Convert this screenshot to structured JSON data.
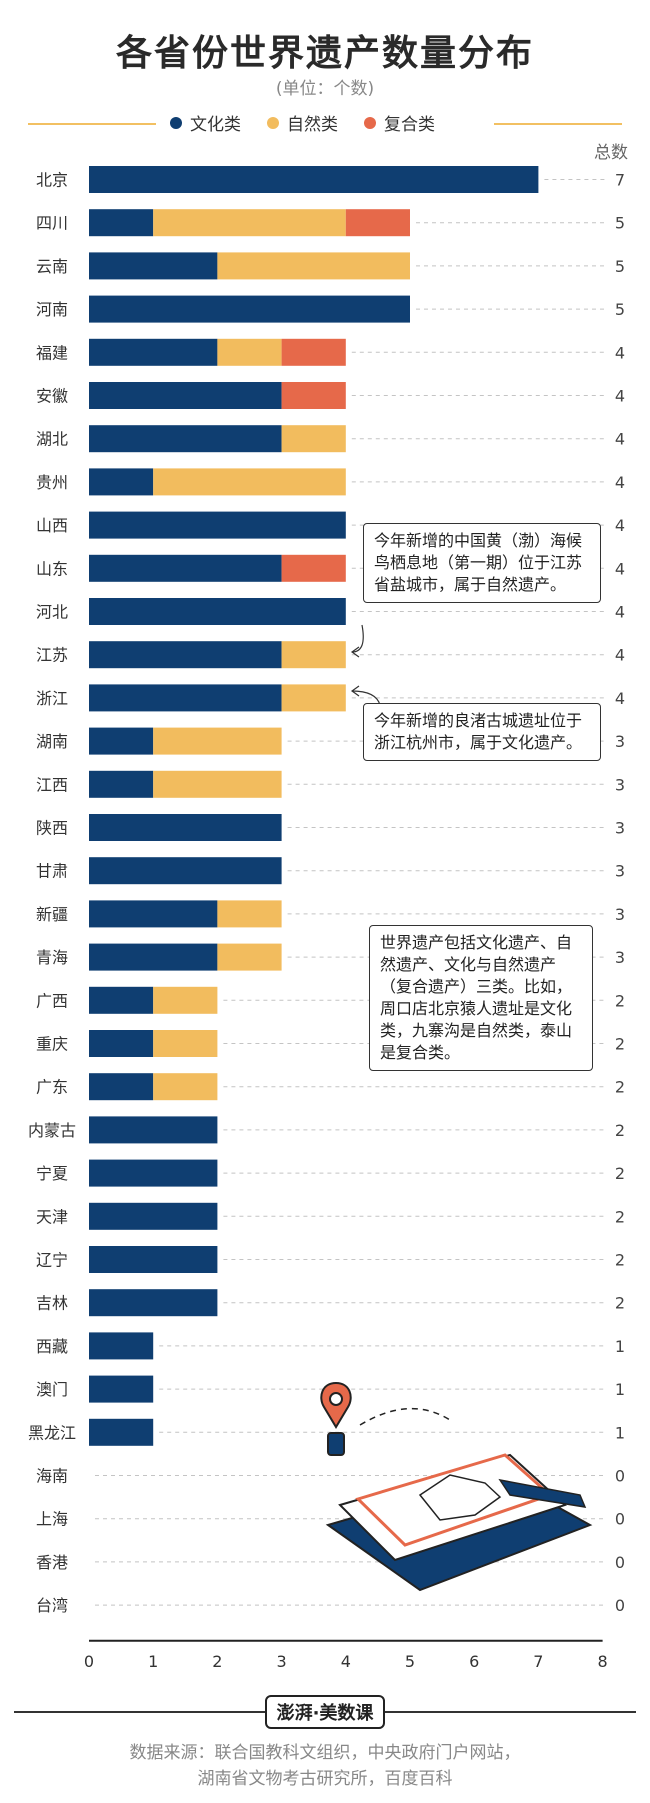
{
  "title": "各省份世界遗产数量分布",
  "subtitle": "(单位：个数)",
  "legend": [
    {
      "label": "文化类",
      "color": "#0f3e71"
    },
    {
      "label": "自然类",
      "color": "#f2bc5e"
    },
    {
      "label": "复合类",
      "color": "#e6694a"
    }
  ],
  "total_label": "总数",
  "chart_data": {
    "type": "bar",
    "orientation": "horizontal",
    "stacked": true,
    "categories": [
      "北京",
      "四川",
      "云南",
      "河南",
      "福建",
      "安徽",
      "湖北",
      "贵州",
      "山西",
      "山东",
      "河北",
      "江苏",
      "浙江",
      "湖南",
      "江西",
      "陕西",
      "甘肃",
      "新疆",
      "青海",
      "广西",
      "重庆",
      "广东",
      "内蒙古",
      "宁夏",
      "天津",
      "辽宁",
      "吉林",
      "西藏",
      "澳门",
      "黑龙江",
      "海南",
      "上海",
      "香港",
      "台湾"
    ],
    "series": [
      {
        "name": "文化类",
        "color": "#0f3e71",
        "values": [
          7,
          1,
          2,
          5,
          2,
          3,
          3,
          1,
          4,
          3,
          4,
          3,
          3,
          1,
          1,
          3,
          3,
          2,
          2,
          1,
          1,
          1,
          2,
          2,
          2,
          2,
          2,
          1,
          1,
          1,
          0,
          0,
          0,
          0
        ]
      },
      {
        "name": "自然类",
        "color": "#f2bc5e",
        "values": [
          0,
          3,
          3,
          0,
          1,
          0,
          1,
          3,
          0,
          0,
          0,
          1,
          1,
          2,
          2,
          0,
          0,
          1,
          1,
          1,
          1,
          1,
          0,
          0,
          0,
          0,
          0,
          0,
          0,
          0,
          0,
          0,
          0,
          0
        ]
      },
      {
        "name": "复合类",
        "color": "#e6694a",
        "values": [
          0,
          1,
          0,
          0,
          1,
          1,
          0,
          0,
          0,
          1,
          0,
          0,
          0,
          0,
          0,
          0,
          0,
          0,
          0,
          0,
          0,
          0,
          0,
          0,
          0,
          0,
          0,
          0,
          0,
          0,
          0,
          0,
          0,
          0
        ]
      }
    ],
    "totals": [
      7,
      5,
      5,
      5,
      4,
      4,
      4,
      4,
      4,
      4,
      4,
      4,
      4,
      3,
      3,
      3,
      3,
      3,
      3,
      2,
      2,
      2,
      2,
      2,
      2,
      2,
      2,
      1,
      1,
      1,
      0,
      0,
      0,
      0
    ],
    "x_ticks": [
      0,
      1,
      2,
      3,
      4,
      5,
      6,
      7,
      8
    ],
    "xlim": [
      0,
      8
    ],
    "grid": "dashed-row-guides"
  },
  "annotations": [
    {
      "id": "shandong",
      "text": "今年新增的中国黄（渤）海候鸟栖息地（第一期）位于江苏省盐城市，属于自然遗产。"
    },
    {
      "id": "zhejiang",
      "text": "今年新增的良渚古城遗址位于浙江杭州市，属于文化遗产。"
    },
    {
      "id": "definition",
      "text": "世界遗产包括文化遗产、自然遗产、文化与自然遗产（复合遗产）三类。比如，周口店北京猿人遗址是文化类，九寨沟是自然类，泰山是复合类。"
    }
  ],
  "logo": "澎湃·美数课",
  "source": {
    "line1": "数据来源：联合国教科文组织，中央政府门户网站，",
    "line2": "湖南省文物考古研究所，百度百科"
  }
}
